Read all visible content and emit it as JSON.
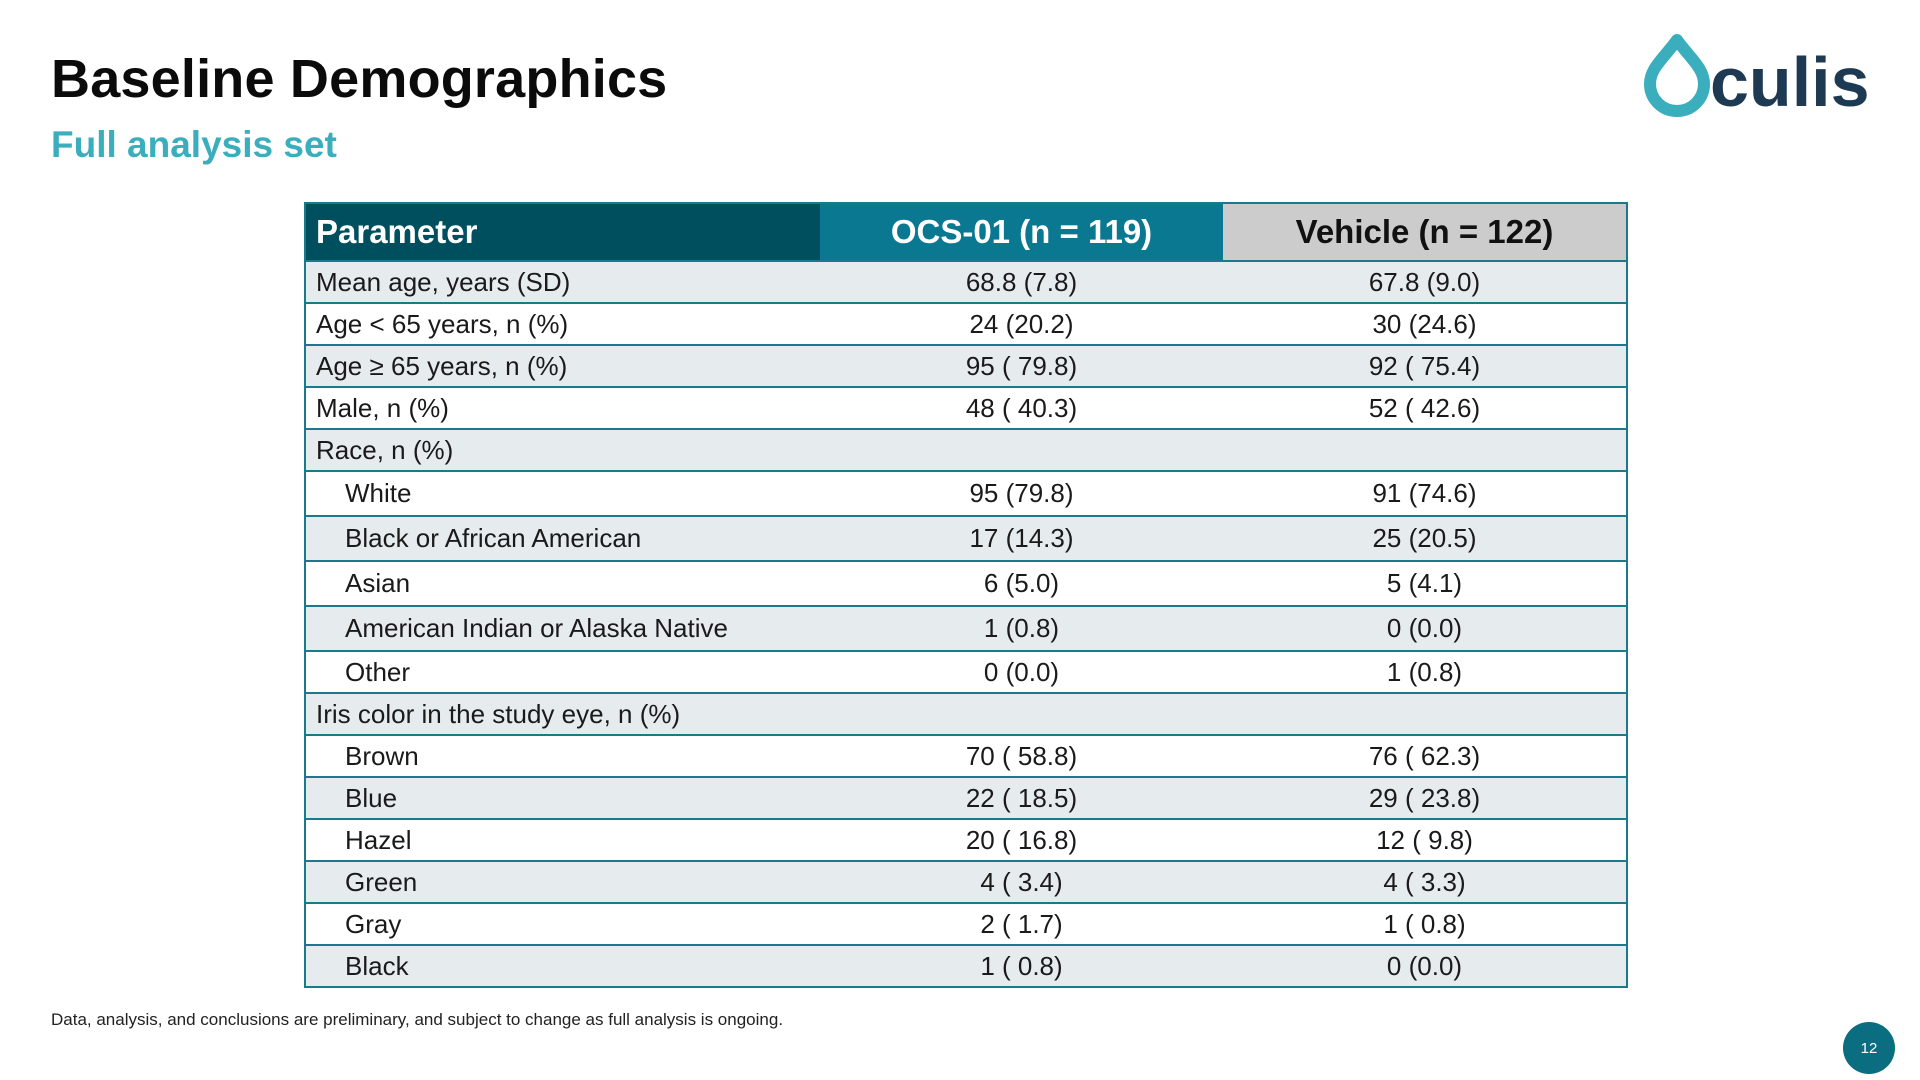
{
  "slide": {
    "title": "Baseline Demographics",
    "subtitle": "Full analysis set",
    "footnote": "Data, analysis, and conclusions are preliminary, and subject to change as full analysis is ongoing.",
    "page_number": "12"
  },
  "logo": {
    "text": "Oculis",
    "colors": {
      "mark": "#3aaebd",
      "text": "#1d3a52"
    }
  },
  "colors": {
    "header_param": "#004f5f",
    "header_ocs": "#0a7890",
    "header_vehicle": "#cccccc",
    "row_shade": "#e6ebee",
    "border": "#1a7a8c",
    "subtitle": "#3aaebd"
  },
  "table": {
    "headers": {
      "parameter": "Parameter",
      "ocs": "OCS-01 (n = 119)",
      "vehicle": "Vehicle (n = 122)"
    },
    "rows": [
      {
        "label": "Mean age, years (SD)",
        "ocs": "68.8 (7.8)",
        "vehicle": "67.8 (9.0)"
      },
      {
        "label": "Age < 65 years, n (%)",
        "ocs": "24 (20.2)",
        "vehicle": "30 (24.6)"
      },
      {
        "label": "Age ≥ 65 years, n (%)",
        "ocs": "95 ( 79.8)",
        "vehicle": "92 ( 75.4)"
      },
      {
        "label": "Male, n (%)",
        "ocs": "48 ( 40.3)",
        "vehicle": "52 ( 42.6)"
      },
      {
        "label": "Race, n (%)",
        "ocs": "",
        "vehicle": ""
      },
      {
        "label": "White",
        "ocs": "95 (79.8)",
        "vehicle": "91 (74.6)"
      },
      {
        "label": "Black or African American",
        "ocs": "17 (14.3)",
        "vehicle": "25 (20.5)"
      },
      {
        "label": "Asian",
        "ocs": "6 (5.0)",
        "vehicle": "5 (4.1)"
      },
      {
        "label": "American Indian or Alaska Native",
        "ocs": "1 (0.8)",
        "vehicle": "0 (0.0)"
      },
      {
        "label": "Other",
        "ocs": "0 (0.0)",
        "vehicle": "1 (0.8)"
      },
      {
        "label": "Iris color in the study eye, n (%)",
        "ocs": "",
        "vehicle": ""
      },
      {
        "label": "Brown",
        "ocs": "70 ( 58.8)",
        "vehicle": "76 ( 62.3)"
      },
      {
        "label": "Blue",
        "ocs": "22 ( 18.5)",
        "vehicle": "29 ( 23.8)"
      },
      {
        "label": "Hazel",
        "ocs": "20 ( 16.8)",
        "vehicle": "12 ( 9.8)"
      },
      {
        "label": "Green",
        "ocs": "4 ( 3.4)",
        "vehicle": "4 ( 3.3)"
      },
      {
        "label": "Gray",
        "ocs": "2 ( 1.7)",
        "vehicle": "1 ( 0.8)"
      },
      {
        "label": "Black",
        "ocs": "1 ( 0.8)",
        "vehicle": "0 (0.0)"
      }
    ]
  }
}
